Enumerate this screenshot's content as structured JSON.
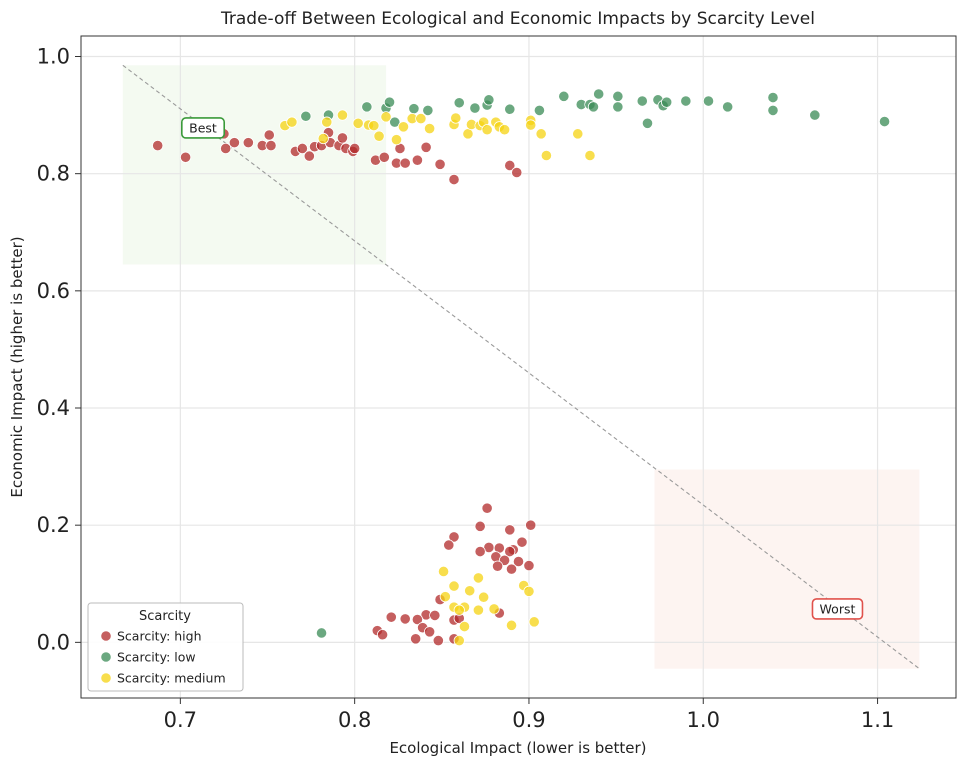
{
  "chart_data": {
    "type": "scatter",
    "title": "Trade-off Between Ecological and Economic Impacts by Scarcity Level",
    "xlabel": "Ecological Impact (lower is better)",
    "ylabel": "Economic Impact (higher is better)",
    "xlim": [
      0.643,
      1.145
    ],
    "ylim": [
      -0.095,
      1.035
    ],
    "xticks": [
      0.7,
      0.8,
      0.9,
      1.0,
      1.1
    ],
    "xtick_labels": [
      "0.7",
      "0.8",
      "0.9",
      "1.0",
      "1.1"
    ],
    "yticks": [
      0.0,
      0.2,
      0.4,
      0.6,
      0.8,
      1.0
    ],
    "ytick_labels": [
      "0.0",
      "0.2",
      "0.4",
      "0.6",
      "0.8",
      "1.0"
    ],
    "grid": true,
    "legend": {
      "title": "Scarcity",
      "placement": "lower-left"
    },
    "regions": [
      {
        "name": "best",
        "x": [
          0.667,
          0.818
        ],
        "y": [
          0.645,
          0.985
        ],
        "color": "#e6f5e0"
      },
      {
        "name": "worst",
        "x": [
          0.972,
          1.124
        ],
        "y": [
          -0.045,
          0.295
        ],
        "color": "#fbe7df"
      }
    ],
    "trade_off_line": {
      "from": [
        0.667,
        0.985
      ],
      "to": [
        1.124,
        -0.045
      ]
    },
    "annotations": [
      {
        "text": "Best",
        "x": 0.713,
        "y": 0.878,
        "border_color": "#3a9a3a"
      },
      {
        "text": "Worst",
        "x": 1.077,
        "y": 0.057,
        "border_color": "#e0524c"
      }
    ],
    "series": [
      {
        "name": "Scarcity: high",
        "color": "#b22a2a",
        "points": [
          [
            0.687,
            0.848
          ],
          [
            0.703,
            0.828
          ],
          [
            0.725,
            0.868
          ],
          [
            0.726,
            0.843
          ],
          [
            0.731,
            0.853
          ],
          [
            0.739,
            0.853
          ],
          [
            0.747,
            0.848
          ],
          [
            0.751,
            0.866
          ],
          [
            0.752,
            0.848
          ],
          [
            0.766,
            0.838
          ],
          [
            0.77,
            0.843
          ],
          [
            0.774,
            0.83
          ],
          [
            0.777,
            0.846
          ],
          [
            0.781,
            0.848
          ],
          [
            0.785,
            0.87
          ],
          [
            0.786,
            0.853
          ],
          [
            0.791,
            0.848
          ],
          [
            0.793,
            0.861
          ],
          [
            0.795,
            0.843
          ],
          [
            0.799,
            0.838
          ],
          [
            0.8,
            0.843
          ],
          [
            0.812,
            0.823
          ],
          [
            0.817,
            0.828
          ],
          [
            0.824,
            0.818
          ],
          [
            0.826,
            0.843
          ],
          [
            0.829,
            0.818
          ],
          [
            0.836,
            0.823
          ],
          [
            0.841,
            0.845
          ],
          [
            0.849,
            0.816
          ],
          [
            0.857,
            0.79
          ],
          [
            0.889,
            0.814
          ],
          [
            0.893,
            0.802
          ],
          [
            0.876,
            0.229
          ],
          [
            0.872,
            0.198
          ],
          [
            0.901,
            0.2
          ],
          [
            0.857,
            0.18
          ],
          [
            0.889,
            0.192
          ],
          [
            0.896,
            0.171
          ],
          [
            0.854,
            0.166
          ],
          [
            0.877,
            0.162
          ],
          [
            0.872,
            0.155
          ],
          [
            0.883,
            0.161
          ],
          [
            0.891,
            0.158
          ],
          [
            0.889,
            0.155
          ],
          [
            0.881,
            0.146
          ],
          [
            0.886,
            0.14
          ],
          [
            0.894,
            0.138
          ],
          [
            0.9,
            0.131
          ],
          [
            0.882,
            0.13
          ],
          [
            0.89,
            0.125
          ],
          [
            0.849,
            0.073
          ],
          [
            0.883,
            0.05
          ],
          [
            0.821,
            0.043
          ],
          [
            0.841,
            0.047
          ],
          [
            0.846,
            0.046
          ],
          [
            0.829,
            0.04
          ],
          [
            0.836,
            0.039
          ],
          [
            0.857,
            0.038
          ],
          [
            0.86,
            0.041
          ],
          [
            0.839,
            0.025
          ],
          [
            0.813,
            0.02
          ],
          [
            0.843,
            0.018
          ],
          [
            0.816,
            0.013
          ],
          [
            0.835,
            0.006
          ],
          [
            0.857,
            0.006
          ],
          [
            0.848,
            0.003
          ]
        ]
      },
      {
        "name": "Scarcity: low",
        "color": "#3a8b55",
        "points": [
          [
            0.772,
            0.898
          ],
          [
            0.785,
            0.9
          ],
          [
            0.807,
            0.914
          ],
          [
            0.818,
            0.912
          ],
          [
            0.82,
            0.922
          ],
          [
            0.823,
            0.888
          ],
          [
            0.834,
            0.911
          ],
          [
            0.842,
            0.908
          ],
          [
            0.86,
            0.921
          ],
          [
            0.869,
            0.912
          ],
          [
            0.876,
            0.917
          ],
          [
            0.877,
            0.926
          ],
          [
            0.889,
            0.91
          ],
          [
            0.906,
            0.908
          ],
          [
            0.92,
            0.932
          ],
          [
            0.93,
            0.918
          ],
          [
            0.935,
            0.918
          ],
          [
            0.937,
            0.914
          ],
          [
            0.94,
            0.936
          ],
          [
            0.951,
            0.932
          ],
          [
            0.951,
            0.914
          ],
          [
            0.965,
            0.924
          ],
          [
            0.968,
            0.886
          ],
          [
            0.974,
            0.926
          ],
          [
            0.977,
            0.916
          ],
          [
            0.979,
            0.922
          ],
          [
            0.99,
            0.924
          ],
          [
            1.003,
            0.924
          ],
          [
            1.014,
            0.914
          ],
          [
            1.04,
            0.93
          ],
          [
            1.04,
            0.908
          ],
          [
            1.064,
            0.9
          ],
          [
            1.104,
            0.889
          ],
          [
            0.781,
            0.016
          ]
        ]
      },
      {
        "name": "Scarcity: medium",
        "color": "#f5d311",
        "points": [
          [
            0.76,
            0.882
          ],
          [
            0.764,
            0.888
          ],
          [
            0.782,
            0.86
          ],
          [
            0.784,
            0.888
          ],
          [
            0.793,
            0.9
          ],
          [
            0.802,
            0.886
          ],
          [
            0.808,
            0.883
          ],
          [
            0.811,
            0.882
          ],
          [
            0.814,
            0.864
          ],
          [
            0.818,
            0.897
          ],
          [
            0.824,
            0.858
          ],
          [
            0.828,
            0.88
          ],
          [
            0.833,
            0.894
          ],
          [
            0.838,
            0.894
          ],
          [
            0.843,
            0.877
          ],
          [
            0.857,
            0.884
          ],
          [
            0.858,
            0.895
          ],
          [
            0.865,
            0.868
          ],
          [
            0.867,
            0.884
          ],
          [
            0.872,
            0.882
          ],
          [
            0.874,
            0.888
          ],
          [
            0.876,
            0.875
          ],
          [
            0.881,
            0.888
          ],
          [
            0.883,
            0.88
          ],
          [
            0.886,
            0.875
          ],
          [
            0.901,
            0.891
          ],
          [
            0.901,
            0.883
          ],
          [
            0.907,
            0.868
          ],
          [
            0.91,
            0.831
          ],
          [
            0.928,
            0.868
          ],
          [
            0.935,
            0.831
          ],
          [
            0.851,
            0.121
          ],
          [
            0.871,
            0.11
          ],
          [
            0.857,
            0.096
          ],
          [
            0.897,
            0.097
          ],
          [
            0.866,
            0.088
          ],
          [
            0.9,
            0.087
          ],
          [
            0.852,
            0.078
          ],
          [
            0.874,
            0.077
          ],
          [
            0.88,
            0.057
          ],
          [
            0.857,
            0.06
          ],
          [
            0.863,
            0.06
          ],
          [
            0.86,
            0.055
          ],
          [
            0.871,
            0.055
          ],
          [
            0.903,
            0.035
          ],
          [
            0.863,
            0.027
          ],
          [
            0.89,
            0.029
          ],
          [
            0.86,
            0.003
          ]
        ]
      }
    ]
  }
}
